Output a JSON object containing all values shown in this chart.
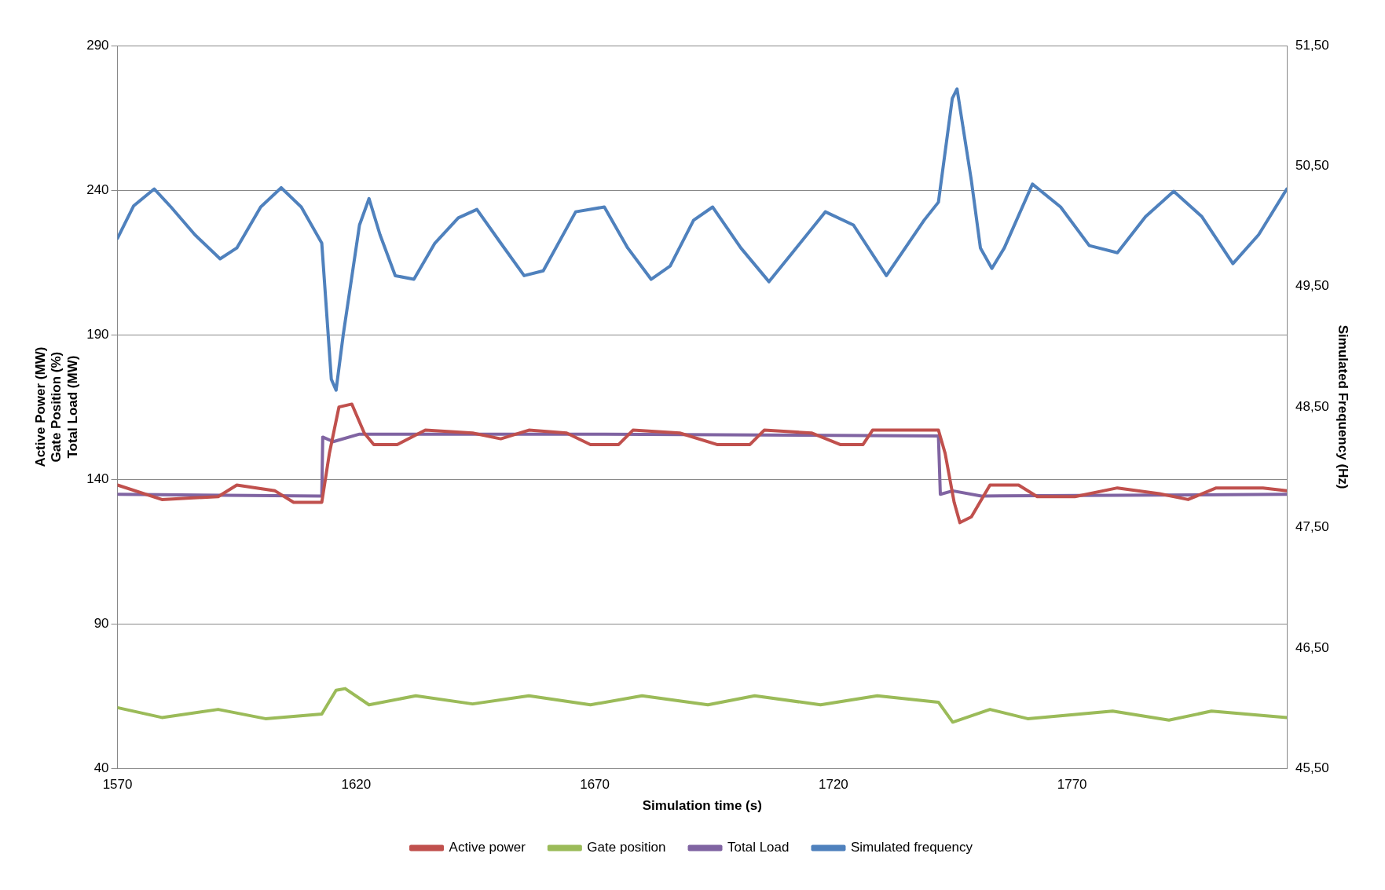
{
  "chart_data": {
    "type": "line",
    "xlabel": "Simulation time (s)",
    "ylabel": "Active Power (MW)\nGate Position (%)\nTotal Load (MW)",
    "y2label": "Simulated Frequency (Hz)",
    "xlim": [
      1570,
      1815
    ],
    "xticks": [
      1570,
      1620,
      1670,
      1720,
      1770
    ],
    "ylim": [
      40,
      290
    ],
    "yticks": [
      40,
      90,
      140,
      190,
      240,
      290
    ],
    "y2lim": [
      45.5,
      51.5
    ],
    "y2ticks": [
      {
        "value": 45.5,
        "label": "45,50"
      },
      {
        "value": 46.5,
        "label": "46,50"
      },
      {
        "value": 47.5,
        "label": "47,50"
      },
      {
        "value": 48.5,
        "label": "48,50"
      },
      {
        "value": 49.5,
        "label": "49,50"
      },
      {
        "value": 50.5,
        "label": "50,50"
      },
      {
        "value": 51.5,
        "label": "51,50"
      }
    ],
    "grid": "y",
    "legend": "bottom",
    "marker": "none",
    "line_style": "solid",
    "series": [
      {
        "name": "Active power",
        "color": "#c0504d",
        "x": [
          1570,
          1579.3,
          1591.1,
          1595,
          1603,
          1606.9,
          1612.8,
          1614.4,
          1616.4,
          1619.1,
          1621.7,
          1623.7,
          1628.6,
          1634.5,
          1644.4,
          1650.3,
          1656.2,
          1664.1,
          1669.1,
          1675,
          1678,
          1687.8,
          1695.6,
          1702.5,
          1705.5,
          1715.4,
          1721.4,
          1726.2,
          1728.2,
          1742,
          1743.4,
          1745.3,
          1746.5,
          1748.9,
          1752.8,
          1758.8,
          1762.7,
          1770.6,
          1779.5,
          1788.3,
          1794.3,
          1800.2,
          1810,
          1815
        ],
        "values": [
          138,
          133,
          134,
          138,
          136,
          132,
          132,
          149,
          165,
          166,
          156,
          152,
          152,
          157,
          156,
          154,
          157,
          156,
          152,
          152,
          157,
          156,
          152,
          152,
          157,
          156,
          152,
          152,
          157,
          157,
          149,
          132,
          125,
          127,
          138,
          138,
          134,
          134,
          137,
          135,
          133,
          137,
          137,
          136
        ]
      },
      {
        "name": "Gate position",
        "color": "#9bbb59",
        "x": [
          1570,
          1579.3,
          1591.1,
          1601,
          1612.8,
          1615.8,
          1617.7,
          1622.7,
          1632.5,
          1644.4,
          1656.2,
          1669.1,
          1679.9,
          1693.7,
          1703.5,
          1717.3,
          1729.2,
          1742,
          1745,
          1752.8,
          1760.7,
          1778.5,
          1790.3,
          1799.2,
          1815
        ],
        "values": [
          61,
          57.6,
          60.4,
          57.2,
          58.8,
          67,
          67.6,
          62,
          65.1,
          62.3,
          65.1,
          62,
          65.1,
          62,
          65.1,
          62,
          65.1,
          62.9,
          56,
          60.4,
          57.2,
          59.8,
          56.7,
          59.8,
          57.6
        ]
      },
      {
        "name": "Total Load",
        "color": "#8064a2",
        "x": [
          1570,
          1612.8,
          1613,
          1615.2,
          1620.7,
          1672,
          1742,
          1742.4,
          1745,
          1751,
          1815
        ],
        "values": [
          134.8,
          134.2,
          154.6,
          153,
          155.6,
          155.6,
          155,
          134.8,
          136,
          134.2,
          134.8
        ]
      },
      {
        "name": "Simulated frequency",
        "color": "#4f81bd",
        "axis": "y2",
        "x": [
          1570,
          1573.4,
          1577.7,
          1581.2,
          1586.2,
          1591.5,
          1595,
          1600,
          1604.3,
          1608.5,
          1612.8,
          1614.8,
          1615.8,
          1617.3,
          1620.7,
          1622.7,
          1625,
          1628.2,
          1632.1,
          1636.5,
          1641.4,
          1645.3,
          1650.3,
          1655.2,
          1659.2,
          1666,
          1672,
          1676.9,
          1681.8,
          1685.8,
          1690.7,
          1694.7,
          1700.6,
          1706.5,
          1711.4,
          1718.3,
          1724.2,
          1731.1,
          1739,
          1742,
          1744.9,
          1745.9,
          1748.9,
          1750.8,
          1753.2,
          1755.8,
          1761.7,
          1767.6,
          1773.6,
          1779.5,
          1785.4,
          1791.3,
          1797.2,
          1803.7,
          1809.1,
          1815
        ],
        "values": [
          49.9,
          50.17,
          50.31,
          50.16,
          49.93,
          49.73,
          49.82,
          50.16,
          50.32,
          50.16,
          49.86,
          48.73,
          48.64,
          49.1,
          50.01,
          50.23,
          49.93,
          49.59,
          49.56,
          49.86,
          50.07,
          50.14,
          49.86,
          49.59,
          49.63,
          50.12,
          50.16,
          49.82,
          49.56,
          49.67,
          50.05,
          50.16,
          49.82,
          49.54,
          49.78,
          50.12,
          50.01,
          49.59,
          50.05,
          50.2,
          51.06,
          51.14,
          50.38,
          49.82,
          49.65,
          49.82,
          50.35,
          50.16,
          49.84,
          49.78,
          50.08,
          50.29,
          50.08,
          49.69,
          49.93,
          50.31
        ]
      }
    ]
  }
}
